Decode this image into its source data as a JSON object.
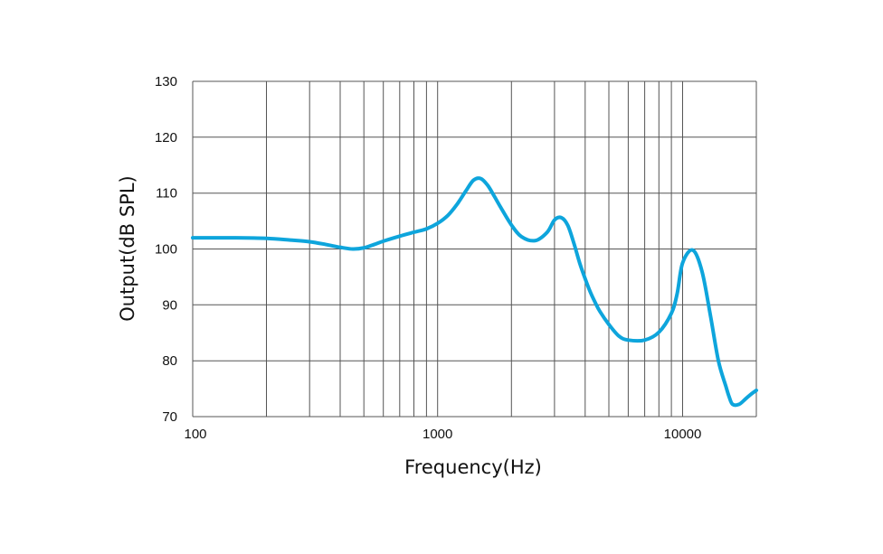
{
  "chart_data": {
    "type": "line",
    "title": "",
    "xlabel": "Frequency(Hz)",
    "ylabel": "Output(dB SPL)",
    "x_scale": "log",
    "xlim": [
      100,
      20000
    ],
    "ylim": [
      70,
      130
    ],
    "x_tick_labels": [
      {
        "value": 100,
        "label": "100"
      },
      {
        "value": 1000,
        "label": "1000"
      },
      {
        "value": 10000,
        "label": "10000"
      }
    ],
    "x_gridlines": [
      100,
      200,
      300,
      400,
      500,
      600,
      700,
      800,
      900,
      1000,
      2000,
      3000,
      4000,
      5000,
      6000,
      7000,
      8000,
      9000,
      10000,
      20000
    ],
    "y_ticks": [
      70,
      80,
      90,
      100,
      110,
      120,
      130
    ],
    "grid": true,
    "line_color": "#0ea5dc",
    "series": [
      {
        "x": [
          100,
          150,
          200,
          250,
          300,
          350,
          400,
          450,
          500,
          550,
          600,
          700,
          800,
          900,
          1000,
          1100,
          1200,
          1300,
          1400,
          1500,
          1600,
          1700,
          1800,
          2000,
          2200,
          2500,
          2800,
          3000,
          3200,
          3400,
          3600,
          3800,
          4000,
          4200,
          4400,
          4600,
          5000,
          5500,
          6000,
          7000,
          8000,
          9000,
          9500,
          10000,
          11000,
          12000,
          13000,
          14000,
          15000,
          15500,
          16000,
          17000,
          18000,
          19000,
          20000
        ],
        "y": [
          102,
          102,
          101.9,
          101.6,
          101.3,
          100.8,
          100.3,
          100,
          100.2,
          100.8,
          101.4,
          102.3,
          103,
          103.6,
          104.6,
          106,
          108,
          110.3,
          112.3,
          112.6,
          111.4,
          109.5,
          107.6,
          104.3,
          102.2,
          101.5,
          103,
          105.2,
          105.6,
          104.2,
          101,
          97.5,
          94.7,
          92.3,
          90.4,
          88.8,
          86.5,
          84.4,
          83.7,
          83.7,
          85.1,
          88.5,
          92,
          97.5,
          99.8,
          96,
          88,
          80,
          75.5,
          73.5,
          72.2,
          72.2,
          73.1,
          74,
          74.7
        ]
      }
    ]
  }
}
